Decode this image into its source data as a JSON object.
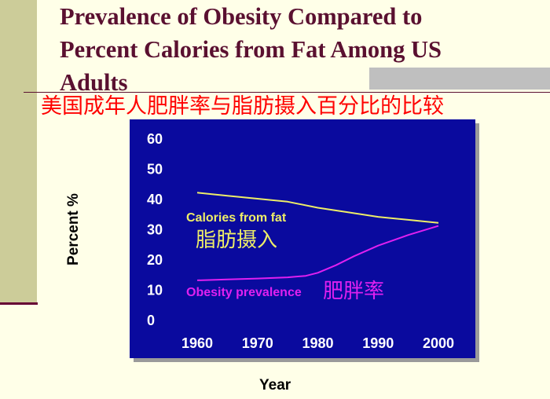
{
  "title": "Prevalence of Obesity Compared to\nPercent Calories from Fat Among US\nAdults",
  "subtitle": "美国成年人肥胖率与脂肪摄入百分比的比较",
  "colors": {
    "background": "#FFFFE8",
    "left_bar": "#CCCC99",
    "title": "#5A1030",
    "subtitle": "#FF0000",
    "plot_bg": "#0A0A9E",
    "axis_text": "#FFFFFF",
    "fat_series": "#EDED68",
    "obesity_series": "#E020F0"
  },
  "chart_data": {
    "type": "line",
    "title": "",
    "xlabel": "Year",
    "ylabel": "Percent %",
    "xlim": [
      1960,
      2000
    ],
    "ylim": [
      0,
      60
    ],
    "x_ticks": [
      "1960",
      "1970",
      "1980",
      "1990",
      "2000"
    ],
    "y_ticks": [
      "0",
      "10",
      "20",
      "30",
      "40",
      "50",
      "60"
    ],
    "grid": false,
    "series": [
      {
        "name": "Calories from fat",
        "annotation": "脂肪摄入",
        "color": "#EDED68",
        "x": [
          1960,
          1965,
          1970,
          1975,
          1980,
          1985,
          1990,
          1995,
          2000
        ],
        "y": [
          42,
          41,
          40,
          39,
          37,
          35.5,
          34,
          33,
          32
        ]
      },
      {
        "name": "Obesity prevalence",
        "annotation": "肥胖率",
        "color": "#E020F0",
        "x": [
          1960,
          1965,
          1970,
          1975,
          1978,
          1980,
          1983,
          1986,
          1990,
          1995,
          2000
        ],
        "y": [
          13,
          13.3,
          13.6,
          14,
          14.5,
          15.5,
          18,
          21,
          24.5,
          28,
          31
        ]
      }
    ]
  }
}
